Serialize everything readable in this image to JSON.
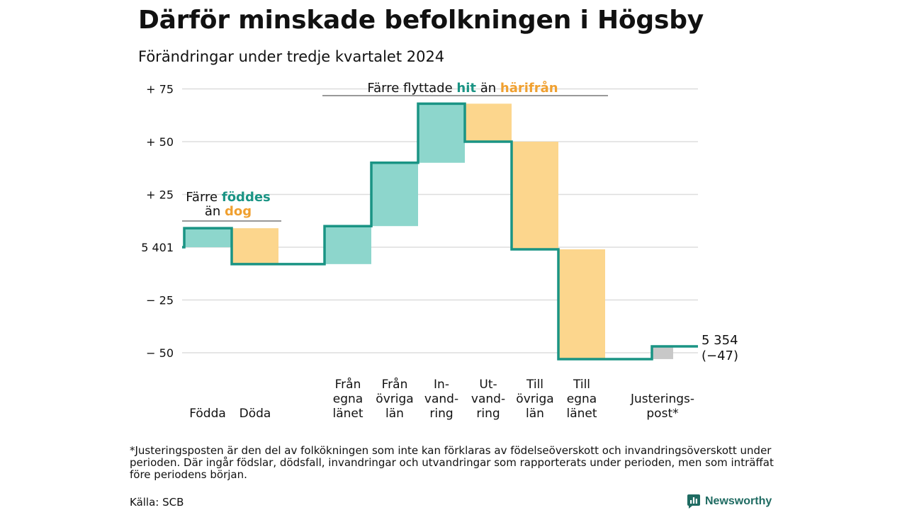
{
  "chart_data": {
    "type": "waterfall",
    "title": "Därför minskade befolkningen i Högsby",
    "subtitle": "Förändringar under tredje kvartalet 2024",
    "start_value": 5401,
    "start_label": "5 401",
    "yticks": [
      {
        "value": 75,
        "label": "+ 75"
      },
      {
        "value": 50,
        "label": "+ 50"
      },
      {
        "value": 25,
        "label": "+ 25"
      },
      {
        "value": 0,
        "label": "5 401"
      },
      {
        "value": -25,
        "label": "− 25"
      },
      {
        "value": -50,
        "label": "− 50"
      }
    ],
    "ylim": [
      -55,
      80
    ],
    "categories": [
      {
        "label_lines": [
          "Födda"
        ],
        "value": 9
      },
      {
        "label_lines": [
          "Döda"
        ],
        "value": -17
      },
      {
        "label_lines": [
          "Från",
          "egna",
          "länet"
        ],
        "value": 18
      },
      {
        "label_lines": [
          "Från",
          "övriga",
          "län"
        ],
        "value": 30
      },
      {
        "label_lines": [
          "In-",
          "vand-",
          "ring"
        ],
        "value": 28
      },
      {
        "label_lines": [
          "Ut-",
          "vand-",
          "ring"
        ],
        "value": -18
      },
      {
        "label_lines": [
          "Till",
          "övriga",
          "län"
        ],
        "value": -51
      },
      {
        "label_lines": [
          "Till",
          "egna",
          "länet"
        ],
        "value": -52
      },
      {
        "label_lines": [
          "Justerings-",
          "post*"
        ],
        "value": 6
      }
    ],
    "end_value": 5354,
    "end_label_line1": "5 354",
    "end_label_line2": "(−47)",
    "annotations": [
      {
        "parts": [
          {
            "text": "Färre ",
            "style": "normal"
          },
          {
            "text": "föddes",
            "style": "hit"
          }
        ],
        "line2": [
          {
            "text": "än ",
            "style": "normal"
          },
          {
            "text": "dog",
            "style": "fran"
          }
        ]
      },
      {
        "parts": [
          {
            "text": "Färre flyttade ",
            "style": "normal"
          },
          {
            "text": "hit",
            "style": "hit"
          },
          {
            "text": " än ",
            "style": "normal"
          },
          {
            "text": "härifrån",
            "style": "fran"
          }
        ]
      }
    ],
    "colors": {
      "increase": "#8dd6cc",
      "decrease": "#fcd68d",
      "adjustment": "#c8c8c8",
      "line": "#1a9484",
      "grid": "#dddddd"
    }
  },
  "footnote": "*Justeringsposten är den del av folkökningen som inte kan förklaras av födelseöverskott och invandringsöverskott under perioden. Där ingår födslar, dödsfall, invandringar och utvandringar som rapporterats under perioden, men som inträffat före periodens början.",
  "source": "Källa: SCB",
  "brand": {
    "name": "Newsworthy",
    "icon": "bar-chart-logo-icon"
  }
}
